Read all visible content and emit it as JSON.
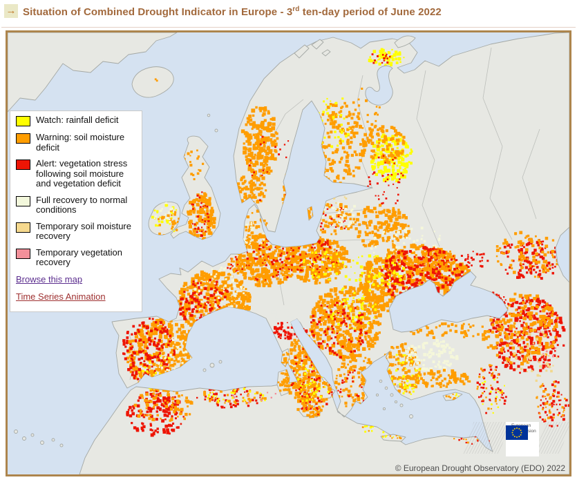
{
  "header": {
    "arrow_icon": "→",
    "title_part1": "Situation of Combined Drought Indicator in Europe - 3",
    "title_sup": "rd",
    "title_part2": " ten-day period of June 2022"
  },
  "legend": {
    "items": [
      {
        "label": "Watch: rainfall deficit",
        "color": "#ffff00"
      },
      {
        "label": "Warning: soil moisture deficit",
        "color": "#ff9d00"
      },
      {
        "label": "Alert: vegetation stress following soil moisture and vegetation deficit",
        "color": "#ee1505"
      },
      {
        "label": "Full recovery to normal conditions",
        "color": "#f3f8dc"
      },
      {
        "label": "Temporary soil moisture recovery",
        "color": "#f6d98e"
      },
      {
        "label": "Temporary vegetation recovery",
        "color": "#f2909a"
      }
    ],
    "links": [
      {
        "label": "Browse this map",
        "color": "#5b2d8e"
      },
      {
        "label": "Time Series Animation",
        "color": "#9e2f2f"
      }
    ]
  },
  "map": {
    "copyright": "© European Drought Observatory (EDO) 2022",
    "eu_logo": {
      "line1": "European",
      "line2": "Commission"
    },
    "sea_color": "#d5e2f1",
    "land_color": "#e7e8e3",
    "palette": {
      "o": "#ff9d00",
      "r": "#ee1505",
      "y": "#ffff00",
      "c": "#f5f7da",
      "t": "#f2d88c",
      "p": "#f2909a",
      "g": "#e7e8e3"
    },
    "clusters": [
      [
        365,
        160,
        26,
        55,
        "o",
        200,
        3,
        6
      ],
      [
        352,
        228,
        22,
        22,
        "o",
        80,
        3,
        5
      ],
      [
        424,
        235,
        26,
        50,
        "o",
        190,
        3,
        6
      ],
      [
        428,
        240,
        20,
        38,
        "y",
        28,
        2,
        4
      ],
      [
        392,
        195,
        42,
        65,
        "r",
        26,
        2,
        3.2
      ],
      [
        480,
        160,
        36,
        60,
        "o",
        150,
        3,
        5
      ],
      [
        470,
        128,
        28,
        42,
        "y",
        40,
        2,
        4
      ],
      [
        548,
        36,
        26,
        13,
        "y",
        55,
        2,
        5
      ],
      [
        538,
        38,
        20,
        11,
        "r",
        14,
        2,
        3
      ],
      [
        556,
        182,
        30,
        36,
        "y",
        170,
        2.5,
        5.5
      ],
      [
        544,
        162,
        32,
        28,
        "o",
        85,
        3,
        5
      ],
      [
        548,
        215,
        28,
        38,
        "r",
        40,
        2,
        3
      ],
      [
        518,
        120,
        22,
        42,
        "o",
        36,
        2.5,
        4.5
      ],
      [
        280,
        268,
        20,
        36,
        "o",
        130,
        3,
        5.5
      ],
      [
        282,
        262,
        17,
        33,
        "r",
        32,
        2,
        3.2
      ],
      [
        266,
        188,
        18,
        28,
        "o",
        22,
        2,
        4
      ],
      [
        228,
        270,
        20,
        22,
        "y",
        26,
        2,
        4
      ],
      [
        230,
        274,
        20,
        22,
        "o",
        22,
        2.5,
        4.5
      ],
      [
        225,
        265,
        18,
        20,
        "c",
        18,
        2,
        4
      ],
      [
        300,
        390,
        52,
        46,
        "o",
        400,
        3,
        6
      ],
      [
        286,
        394,
        38,
        38,
        "r",
        120,
        2.5,
        4.5
      ],
      [
        312,
        378,
        42,
        38,
        "c",
        55,
        2,
        4
      ],
      [
        375,
        330,
        44,
        38,
        "o",
        290,
        3,
        6
      ],
      [
        380,
        330,
        38,
        33,
        "r",
        55,
        2,
        3.5
      ],
      [
        450,
        330,
        44,
        33,
        "o",
        270,
        3,
        6
      ],
      [
        444,
        324,
        38,
        28,
        "r",
        65,
        2,
        3.5
      ],
      [
        456,
        336,
        33,
        23,
        "y",
        38,
        2,
        4
      ],
      [
        470,
        270,
        33,
        23,
        "o",
        55,
        2.5,
        5
      ],
      [
        468,
        270,
        30,
        21,
        "r",
        28,
        2,
        3
      ],
      [
        482,
        264,
        28,
        18,
        "c",
        35,
        2,
        4
      ],
      [
        540,
        282,
        42,
        32,
        "o",
        140,
        3,
        5.5
      ],
      [
        560,
        308,
        38,
        22,
        "c",
        32,
        2,
        4
      ],
      [
        590,
        360,
        80,
        52,
        "o",
        650,
        3,
        6.5
      ],
      [
        600,
        352,
        60,
        42,
        "r",
        230,
        2.5,
        5
      ],
      [
        532,
        348,
        46,
        27,
        "y",
        55,
        2,
        4.5
      ],
      [
        490,
        420,
        52,
        52,
        "o",
        360,
        3,
        6
      ],
      [
        478,
        430,
        42,
        42,
        "r",
        85,
        2.5,
        4
      ],
      [
        502,
        398,
        37,
        32,
        "y",
        45,
        2,
        4
      ],
      [
        505,
        508,
        32,
        42,
        "o",
        110,
        2.5,
        5
      ],
      [
        500,
        518,
        26,
        33,
        "r",
        22,
        2,
        3.2
      ],
      [
        405,
        432,
        28,
        13,
        "r",
        55,
        2.5,
        4.5
      ],
      [
        428,
        488,
        28,
        52,
        "o",
        200,
        3,
        5.5
      ],
      [
        432,
        494,
        23,
        46,
        "r",
        42,
        2,
        3.5
      ],
      [
        436,
        504,
        18,
        32,
        "y",
        22,
        2,
        3.5
      ],
      [
        438,
        548,
        18,
        9,
        "o",
        36,
        2.5,
        4.5
      ],
      [
        438,
        548,
        16,
        8,
        "r",
        10,
        2,
        3
      ],
      [
        400,
        508,
        8,
        18,
        "o",
        26,
        2.5,
        4
      ],
      [
        402,
        472,
        6,
        12,
        "o",
        13,
        2,
        3.5
      ],
      [
        225,
        468,
        52,
        52,
        "o",
        360,
        3,
        6
      ],
      [
        204,
        462,
        38,
        48,
        "r",
        150,
        2.5,
        4.5
      ],
      [
        247,
        474,
        32,
        32,
        "c",
        38,
        2,
        4
      ],
      [
        214,
        490,
        28,
        28,
        "y",
        22,
        2,
        3.5
      ],
      [
        215,
        552,
        42,
        33,
        "r",
        140,
        2.5,
        5
      ],
      [
        226,
        542,
        42,
        28,
        "o",
        80,
        2.5,
        5
      ],
      [
        322,
        528,
        48,
        16,
        "r",
        55,
        2,
        4
      ],
      [
        330,
        526,
        52,
        14,
        "o",
        38,
        2,
        4
      ],
      [
        336,
        528,
        52,
        12,
        "y",
        24,
        2,
        3.5
      ],
      [
        445,
        518,
        28,
        28,
        "o",
        80,
        2.5,
        5
      ],
      [
        448,
        520,
        26,
        26,
        "r",
        28,
        2,
        3.5
      ],
      [
        442,
        515,
        24,
        24,
        "y",
        18,
        2,
        3.5
      ],
      [
        540,
        572,
        38,
        9,
        "y",
        14,
        2,
        3.5
      ],
      [
        545,
        574,
        36,
        8,
        "o",
        10,
        2,
        3.5
      ],
      [
        668,
        588,
        28,
        7,
        "o",
        9,
        2,
        3
      ],
      [
        672,
        590,
        26,
        6,
        "r",
        7,
        2,
        3
      ],
      [
        570,
        488,
        28,
        38,
        "o",
        120,
        2.5,
        5
      ],
      [
        574,
        494,
        23,
        33,
        "y",
        40,
        2,
        4
      ],
      [
        614,
        468,
        38,
        23,
        "c",
        90,
        2.5,
        5
      ],
      [
        624,
        502,
        48,
        13,
        "o",
        80,
        2.5,
        5
      ],
      [
        638,
        432,
        55,
        11,
        "o",
        50,
        2.5,
        4.5
      ],
      [
        752,
        438,
        55,
        56,
        "r",
        300,
        2.5,
        5
      ],
      [
        742,
        428,
        56,
        52,
        "o",
        200,
        3,
        5.5
      ],
      [
        758,
        468,
        38,
        38,
        "t",
        45,
        2,
        4
      ],
      [
        758,
        328,
        46,
        32,
        "r",
        110,
        2.5,
        4.5
      ],
      [
        752,
        322,
        48,
        34,
        "o",
        85,
        2.5,
        5
      ],
      [
        704,
        394,
        22,
        18,
        "r",
        36,
        2,
        3.5
      ],
      [
        700,
        518,
        23,
        36,
        "r",
        45,
        2,
        3.5
      ],
      [
        696,
        514,
        21,
        33,
        "o",
        28,
        2,
        3.5
      ],
      [
        702,
        522,
        19,
        30,
        "y",
        13,
        2,
        3
      ],
      [
        790,
        538,
        24,
        33,
        "r",
        55,
        2,
        4
      ],
      [
        786,
        534,
        24,
        30,
        "o",
        38,
        2,
        4
      ],
      [
        644,
        528,
        11,
        4,
        "o",
        7,
        2,
        3
      ],
      [
        646,
        526,
        10,
        4,
        "y",
        4,
        2,
        2.5
      ],
      [
        558,
        586,
        16,
        3.5,
        "o",
        7,
        2,
        3
      ],
      [
        554,
        585,
        14,
        3,
        "y",
        5,
        1.5,
        2.5
      ],
      [
        360,
        282,
        16,
        26,
        "o",
        36,
        2.5,
        4.5
      ],
      [
        352,
        296,
        20,
        24,
        "c",
        18,
        2,
        3.5
      ],
      [
        330,
        336,
        13,
        11,
        "r",
        16,
        2,
        3
      ],
      [
        332,
        338,
        14,
        12,
        "o",
        22,
        2,
        4
      ],
      [
        216,
        68,
        3,
        2,
        "o",
        2,
        2,
        3
      ],
      [
        408,
        408,
        26,
        11,
        "g",
        70,
        4,
        8
      ],
      [
        352,
        530,
        55,
        10,
        "p",
        8,
        2,
        3
      ],
      [
        768,
        458,
        26,
        26,
        "p",
        7,
        2,
        3
      ],
      [
        470,
        240,
        20,
        10,
        "t",
        12,
        2,
        3.5
      ],
      [
        590,
        300,
        40,
        20,
        "c",
        25,
        2,
        4
      ],
      [
        620,
        330,
        30,
        18,
        "o",
        45,
        2.5,
        4.5
      ],
      [
        668,
        330,
        28,
        14,
        "r",
        30,
        2,
        3.5
      ]
    ]
  }
}
